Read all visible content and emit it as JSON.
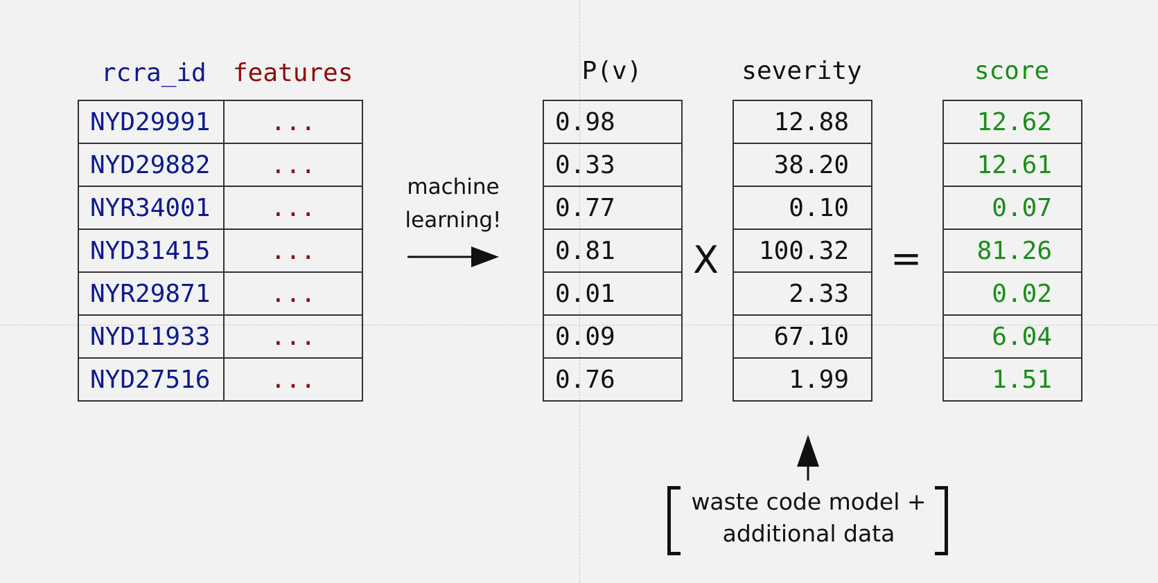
{
  "headers": {
    "rcra_id": "rcra_id",
    "features": "features",
    "pv": "P(v)",
    "severity": "severity",
    "score": "score"
  },
  "rows": [
    {
      "rcra_id": "NYD29991",
      "features": "...",
      "pv": "0.98",
      "severity": "12.88",
      "score": "12.62"
    },
    {
      "rcra_id": "NYD29882",
      "features": "...",
      "pv": "0.33",
      "severity": "38.20",
      "score": "12.61"
    },
    {
      "rcra_id": "NYR34001",
      "features": "...",
      "pv": "0.77",
      "severity": "0.10",
      "score": "0.07"
    },
    {
      "rcra_id": "NYD31415",
      "features": "...",
      "pv": "0.81",
      "severity": "100.32",
      "score": "81.26"
    },
    {
      "rcra_id": "NYR29871",
      "features": "...",
      "pv": "0.01",
      "severity": "2.33",
      "score": "0.02"
    },
    {
      "rcra_id": "NYD11933",
      "features": "...",
      "pv": "0.09",
      "severity": "67.10",
      "score": "6.04"
    },
    {
      "rcra_id": "NYD27516",
      "features": "...",
      "pv": "0.76",
      "severity": "1.99",
      "score": "1.51"
    }
  ],
  "labels": {
    "ml_line1": "machine",
    "ml_line2": "learning!",
    "times": "X",
    "equals": "=",
    "severity_source_line1": "waste code model +",
    "severity_source_line2": "additional data"
  },
  "colors": {
    "rcra_id": "#0d1a8c",
    "features": "#8c0d0d",
    "score": "#1a8c1a",
    "text": "#111111",
    "background": "#f2f2f2"
  }
}
